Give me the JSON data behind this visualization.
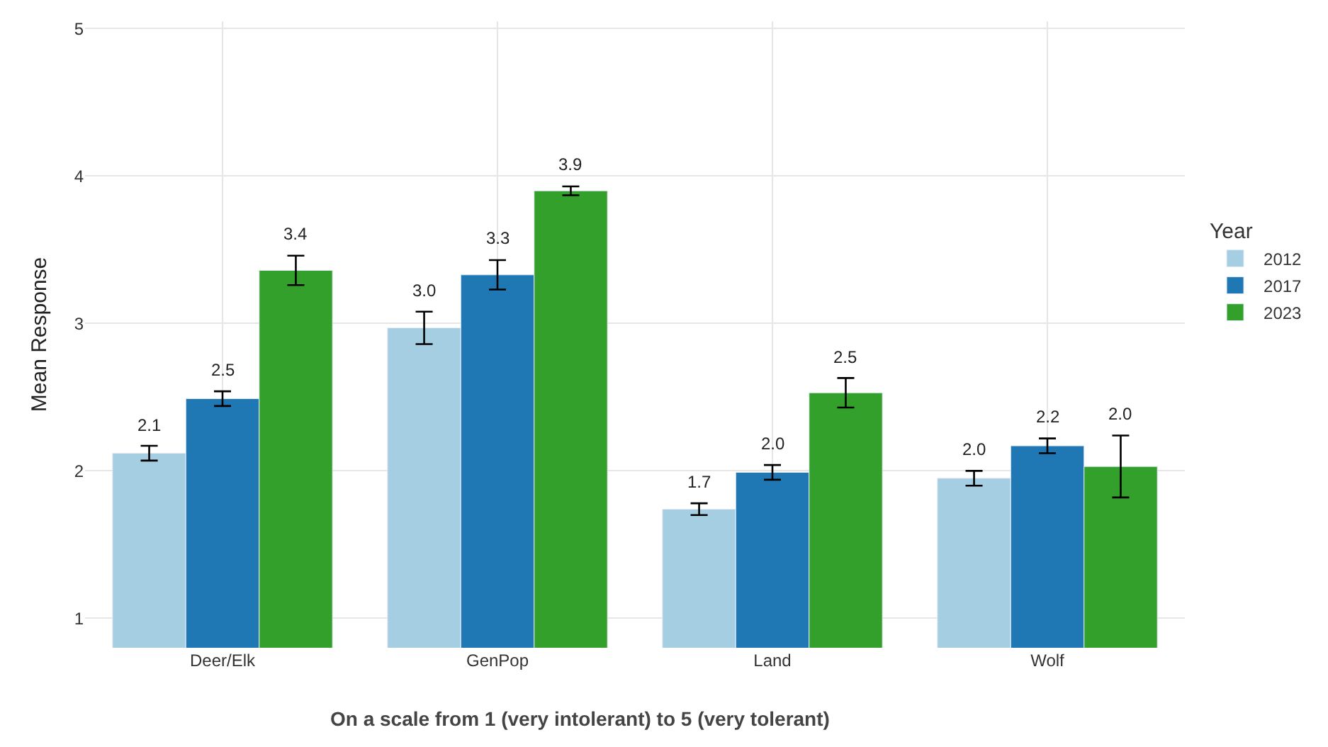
{
  "chart_data": {
    "type": "bar",
    "xlabel": "On a scale from 1 (very intolerant) to 5 (very tolerant)",
    "ylabel": "Mean Response",
    "legend_title": "Year",
    "categories": [
      "Deer/Elk",
      "GenPop",
      "Land",
      "Wolf"
    ],
    "series": [
      {
        "name": "2012",
        "color": "#a6cee3",
        "values": [
          2.12,
          2.97,
          1.74,
          1.95
        ],
        "errors": [
          0.05,
          0.11,
          0.04,
          0.05
        ],
        "value_labels": [
          "2.1",
          "3.0",
          "1.7",
          "2.0"
        ]
      },
      {
        "name": "2017",
        "color": "#1f78b4",
        "values": [
          2.49,
          3.33,
          1.99,
          2.17
        ],
        "errors": [
          0.05,
          0.1,
          0.05,
          0.05
        ],
        "value_labels": [
          "2.5",
          "3.3",
          "2.0",
          "2.2"
        ]
      },
      {
        "name": "2023",
        "color": "#33a02c",
        "values": [
          3.36,
          3.9,
          2.53,
          2.03
        ],
        "errors": [
          0.1,
          0.03,
          0.1,
          0.21
        ],
        "value_labels": [
          "3.4",
          "3.9",
          "2.5",
          "2.0"
        ]
      }
    ],
    "ylim": [
      0.8,
      5.05
    ],
    "yticks": [
      1,
      2,
      3,
      4,
      5
    ],
    "grid": true,
    "legend": "right"
  }
}
